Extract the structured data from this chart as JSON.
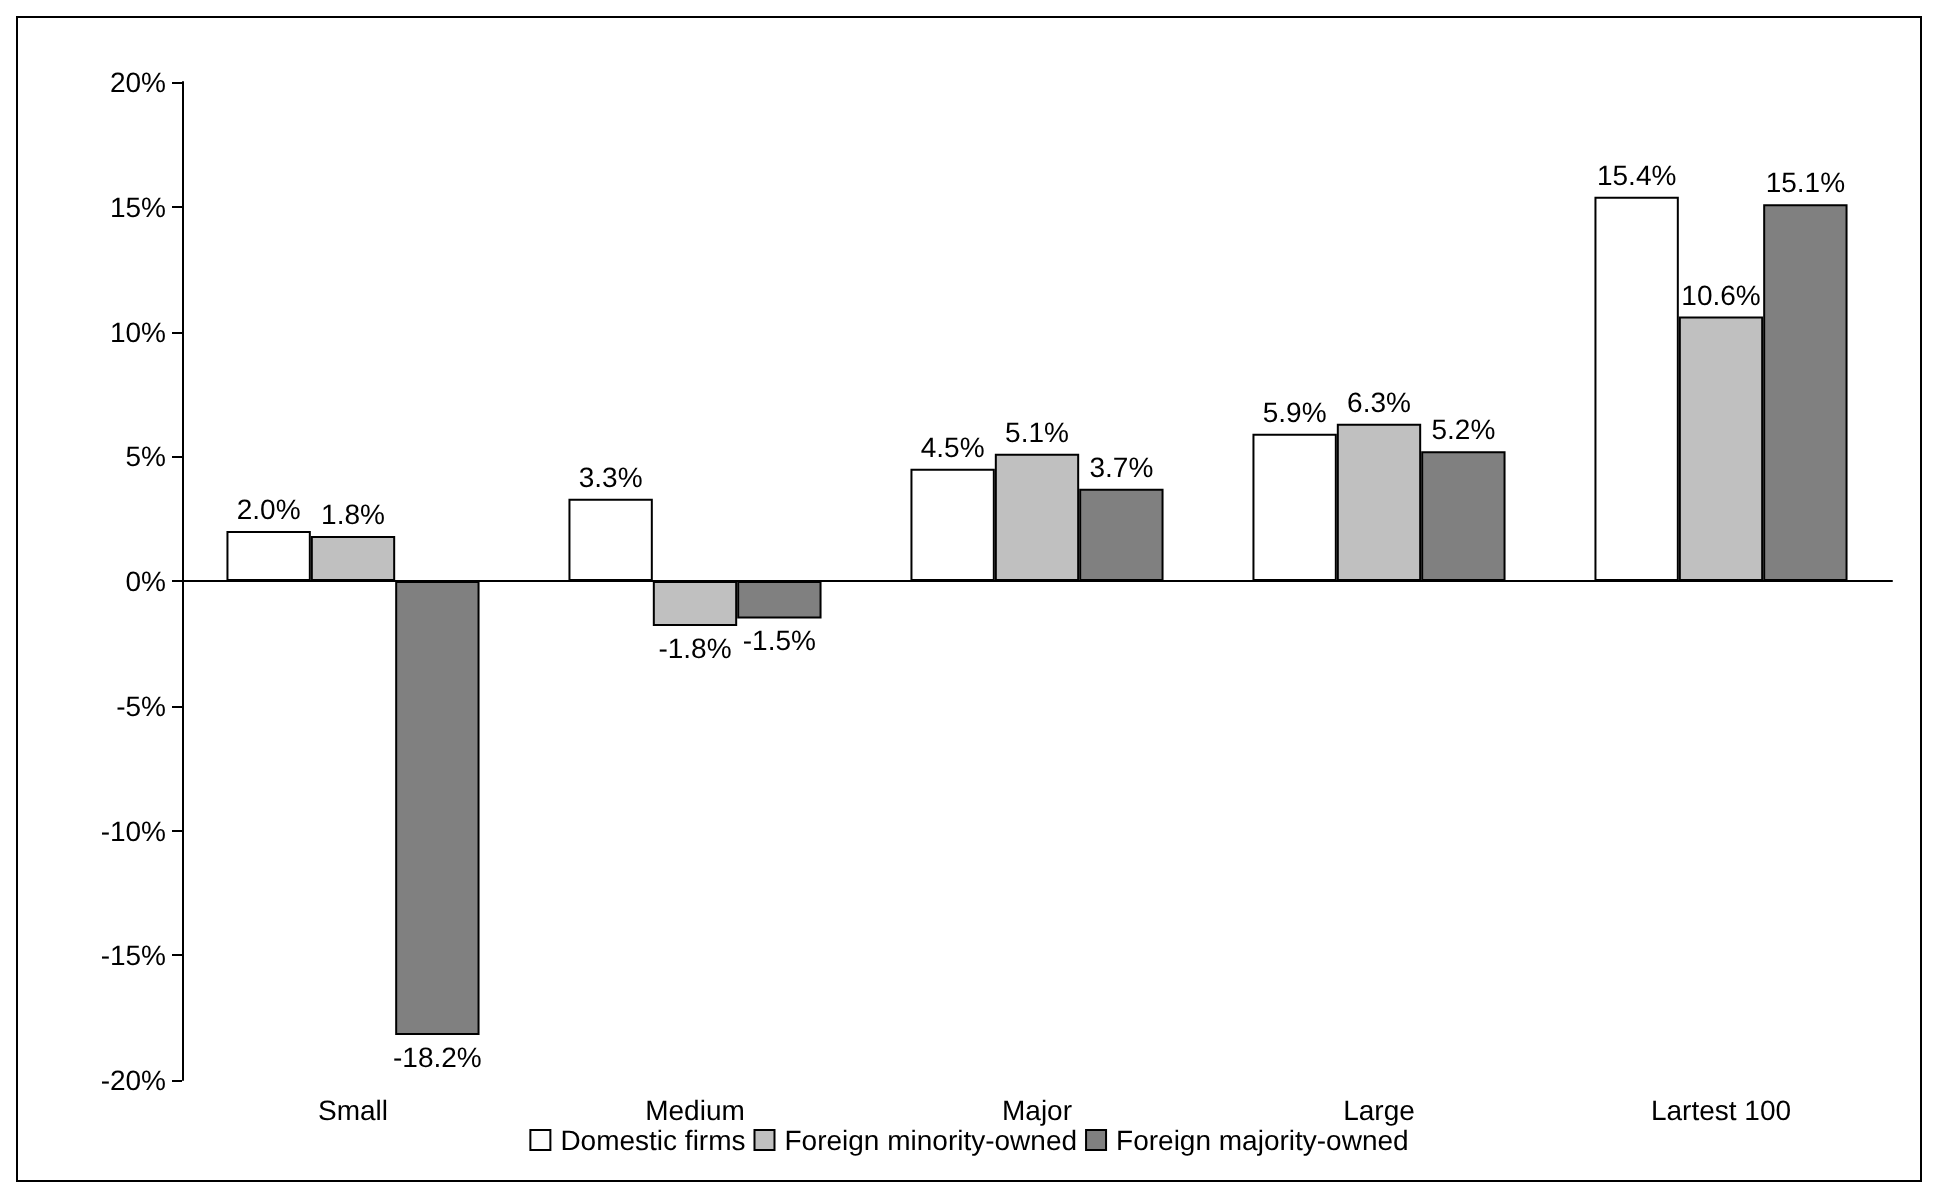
{
  "chart_data": {
    "type": "bar",
    "categories": [
      "Small",
      "Medium",
      "Major",
      "Large",
      "Lartest 100"
    ],
    "series": [
      {
        "name": "Domestic firms",
        "color": "#ffffff",
        "values": [
          2.0,
          3.3,
          4.5,
          5.9,
          15.4
        ],
        "value_labels": [
          "2.0%",
          "3.3%",
          "4.5%",
          "5.9%",
          "15.4%"
        ]
      },
      {
        "name": "Foreign minority-owned",
        "color": "#c0c0c0",
        "values": [
          1.8,
          -1.8,
          5.1,
          6.3,
          10.6
        ],
        "value_labels": [
          "1.8%",
          "-1.8%",
          "5.1%",
          "6.3%",
          "10.6%"
        ]
      },
      {
        "name": "Foreign majority-owned",
        "color": "#808080",
        "values": [
          -18.2,
          -1.5,
          3.7,
          5.2,
          15.1
        ],
        "value_labels": [
          "-18.2%",
          "-1.5%",
          "3.7%",
          "5.2%",
          "15.1%"
        ]
      }
    ],
    "ylim": [
      -20,
      20
    ],
    "yticks": [
      {
        "value": -20,
        "label": "-20%"
      },
      {
        "value": -15,
        "label": "-15%"
      },
      {
        "value": -10,
        "label": "-10%"
      },
      {
        "value": -5,
        "label": "-5%"
      },
      {
        "value": 0,
        "label": "0%"
      },
      {
        "value": 5,
        "label": "5%"
      },
      {
        "value": 10,
        "label": "10%"
      },
      {
        "value": 15,
        "label": "15%"
      },
      {
        "value": 20,
        "label": "20%"
      }
    ],
    "legend": "bottom"
  }
}
